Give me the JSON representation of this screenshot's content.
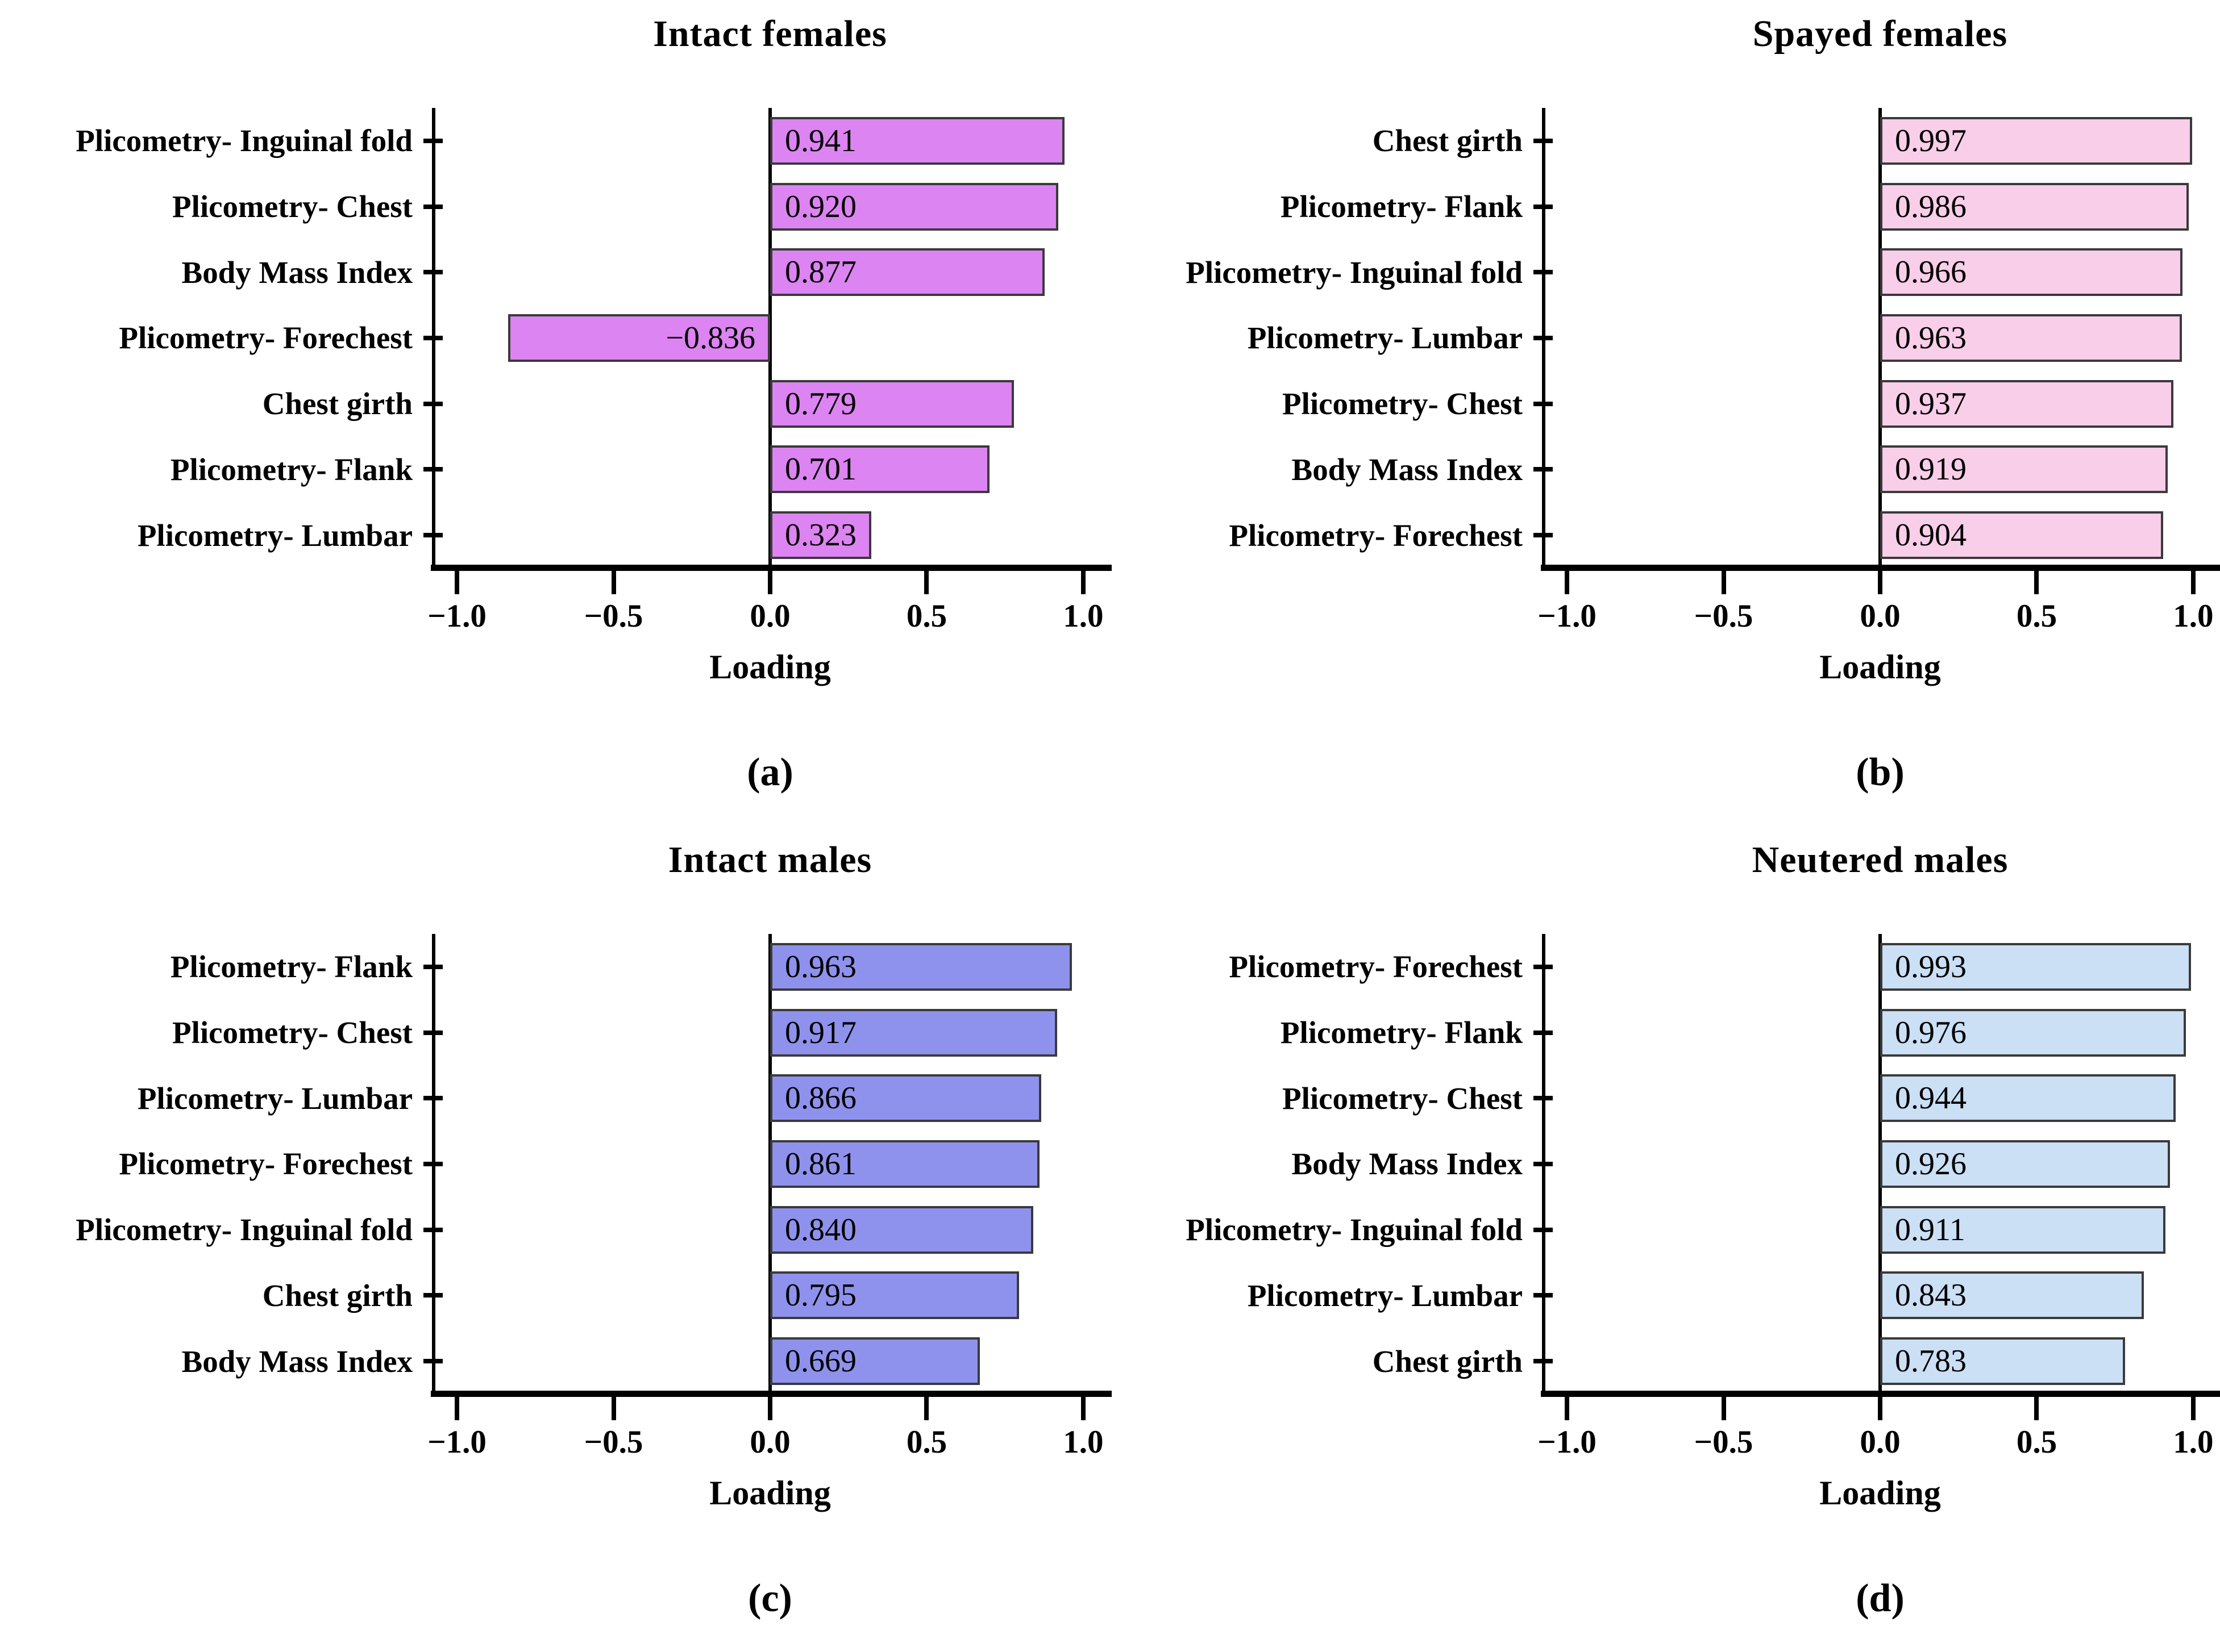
{
  "chart_data": {
    "type": "bar",
    "orientation": "horizontal",
    "title": "",
    "xlabel": "Loading",
    "xlim": [
      -1.08,
      1.08
    ],
    "x_ticks": [
      -1.0,
      -0.5,
      0.0,
      0.5,
      1.0
    ],
    "x_tick_labels": [
      "−1.0",
      "−0.5",
      "0.0",
      "0.5",
      "1.0"
    ],
    "grid": "off",
    "legend": "none",
    "axis_color": "#000000",
    "bar_border_color": "#3a3a3a",
    "panels": [
      {
        "caption": "(a)",
        "title": "Intact females",
        "bar_color": "#DC84F1",
        "categories": [
          "Plicometry- Inguinal fold",
          "Plicometry- Chest",
          "Body Mass Index",
          "Plicometry- Forechest",
          "Chest girth",
          "Plicometry- Flank",
          "Plicometry- Lumbar"
        ],
        "values": [
          0.941,
          0.92,
          0.877,
          -0.836,
          0.779,
          0.701,
          0.323
        ],
        "value_labels": [
          "0.941",
          "0.920",
          "0.877",
          "−0.836",
          "0.779",
          "0.701",
          "0.323"
        ]
      },
      {
        "caption": "(b)",
        "title": "Spayed females",
        "bar_color": "#F8CEE9",
        "categories": [
          "Chest girth",
          "Plicometry- Flank",
          "Plicometry- Inguinal fold",
          "Plicometry- Lumbar",
          "Plicometry- Chest",
          "Body Mass Index",
          "Plicometry- Forechest"
        ],
        "values": [
          0.997,
          0.986,
          0.966,
          0.963,
          0.937,
          0.919,
          0.904
        ],
        "value_labels": [
          "0.997",
          "0.986",
          "0.966",
          "0.963",
          "0.937",
          "0.919",
          "0.904"
        ]
      },
      {
        "caption": "(c)",
        "title": "Intact males",
        "bar_color": "#8F92EC",
        "categories": [
          "Plicometry- Flank",
          "Plicometry- Chest",
          "Plicometry- Lumbar",
          "Plicometry- Forechest",
          "Plicometry- Inguinal fold",
          "Chest girth",
          "Body Mass Index"
        ],
        "values": [
          0.963,
          0.917,
          0.866,
          0.861,
          0.84,
          0.795,
          0.669
        ],
        "value_labels": [
          "0.963",
          "0.917",
          "0.866",
          "0.861",
          "0.840",
          "0.795",
          "0.669"
        ]
      },
      {
        "caption": "(d)",
        "title": "Neutered males",
        "bar_color": "#CBDFF5",
        "categories": [
          "Plicometry- Forechest",
          "Plicometry- Flank",
          "Plicometry- Chest",
          "Body Mass Index",
          "Plicometry- Inguinal fold",
          "Plicometry- Lumbar",
          "Chest girth"
        ],
        "values": [
          0.993,
          0.976,
          0.944,
          0.926,
          0.911,
          0.843,
          0.783
        ],
        "value_labels": [
          "0.993",
          "0.976",
          "0.944",
          "0.926",
          "0.911",
          "0.843",
          "0.783"
        ]
      }
    ]
  }
}
